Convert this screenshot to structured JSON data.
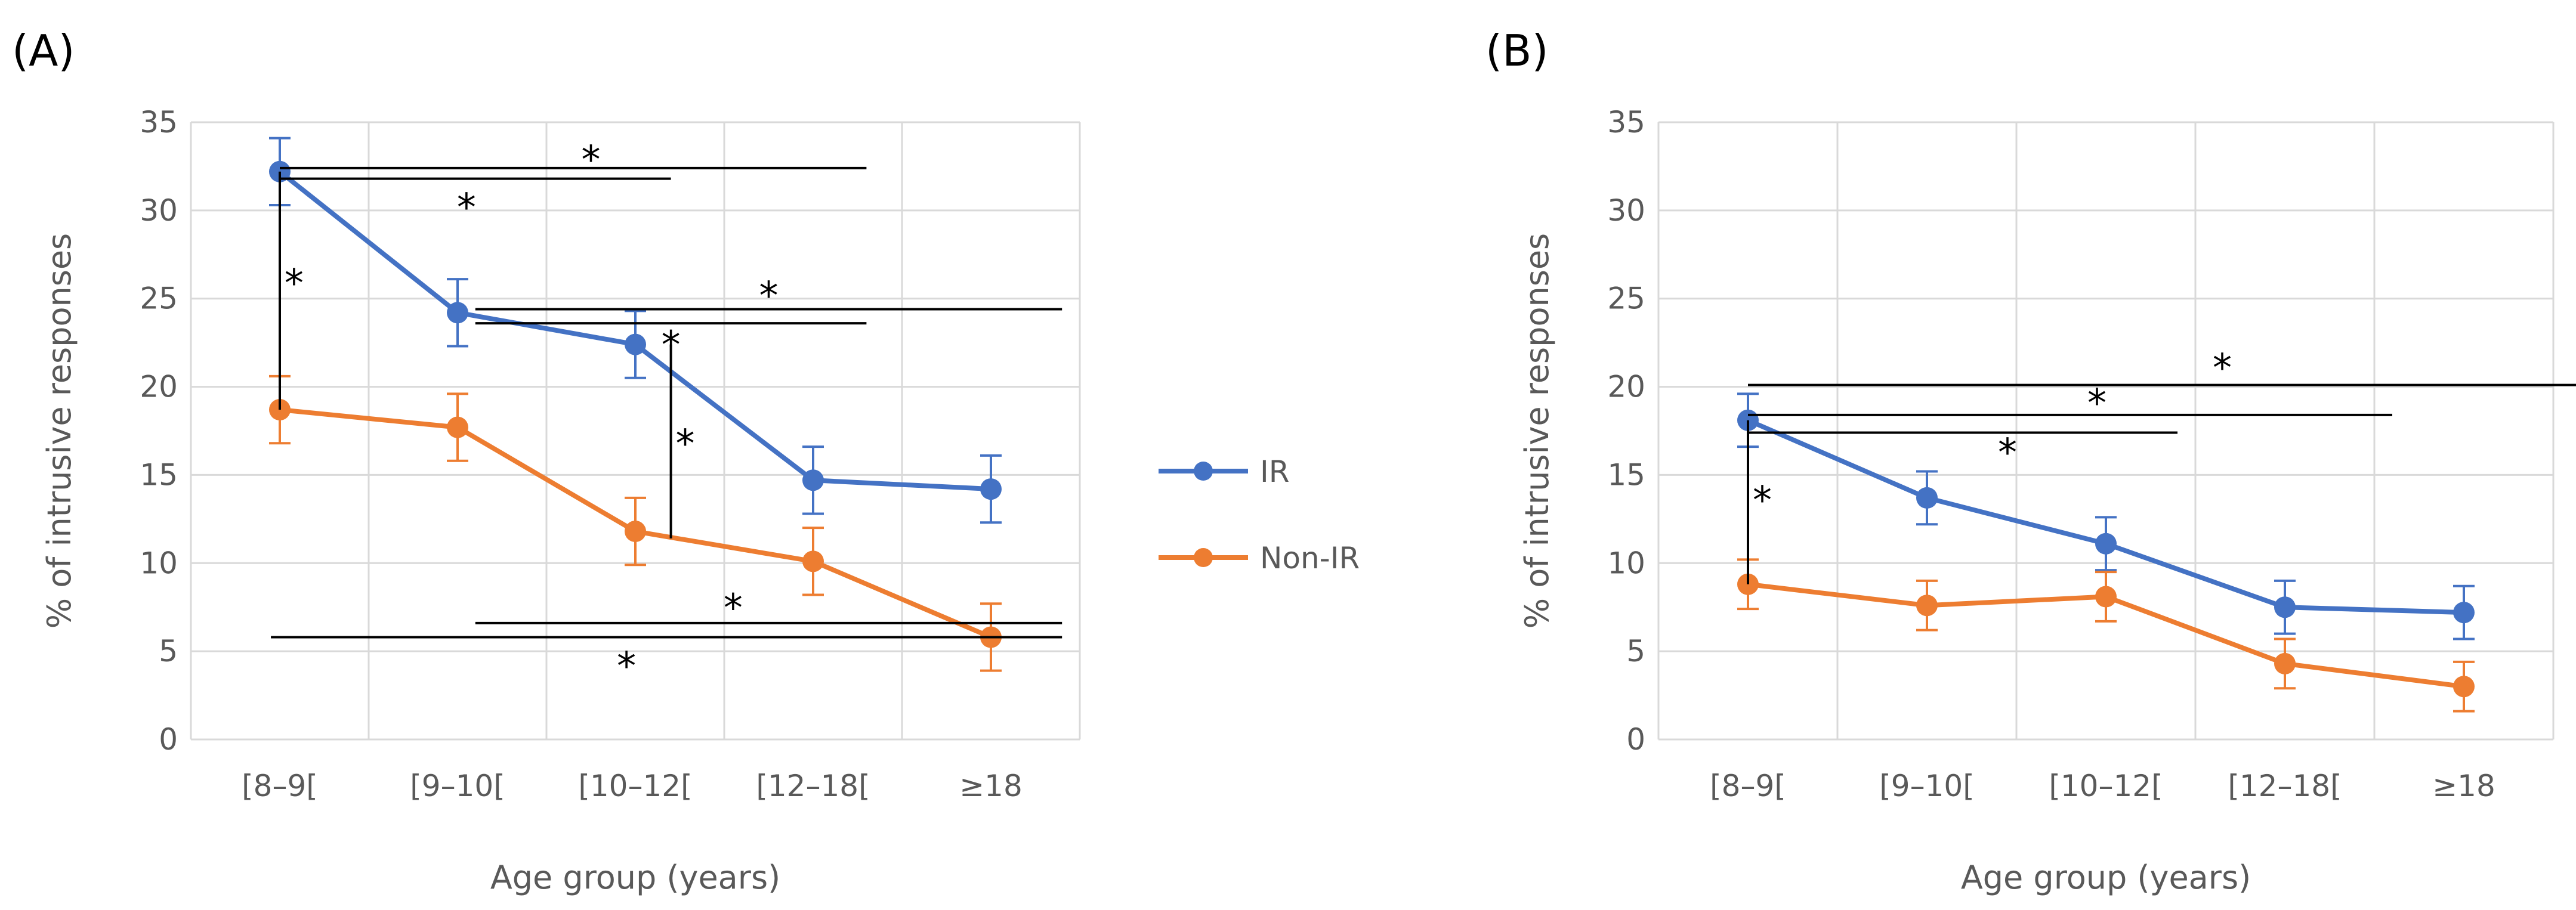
{
  "chart_data": [
    {
      "type": "line",
      "panel_label": "(A)",
      "categories": [
        "[8–9[",
        "[9–10[",
        "[10–12[",
        "[12–18[",
        "≥18"
      ],
      "xlabel": "Age group (years)",
      "ylabel": "% of intrusive responses",
      "ylim": [
        0,
        35
      ],
      "yticks": [
        0,
        5,
        10,
        15,
        20,
        25,
        30,
        35
      ],
      "grid": true,
      "series": [
        {
          "name": "IR",
          "color": "#4472C4",
          "values": [
            32.2,
            24.2,
            22.4,
            14.7,
            14.2
          ],
          "errors": [
            1.9,
            1.9,
            1.9,
            1.9,
            1.9
          ]
        },
        {
          "name": "Non-IR",
          "color": "#ED7D31",
          "values": [
            18.7,
            17.7,
            11.8,
            10.1,
            5.8
          ],
          "errors": [
            1.9,
            1.9,
            1.9,
            1.9,
            1.9
          ]
        }
      ],
      "significance_bars": [
        {
          "type": "h",
          "x1": 0,
          "x2": 3.3,
          "y": 32.4,
          "star": "*",
          "star_x": 1.75,
          "star_y": 33.0
        },
        {
          "type": "h",
          "x1": 0,
          "x2": 2.2,
          "y": 31.8,
          "star": "*",
          "star_x": 1.05,
          "star_y": 30.3
        },
        {
          "type": "h",
          "x1": 1.1,
          "x2": 4.4,
          "y": 24.4,
          "star": "*",
          "star_x": 2.75,
          "star_y": 25.3
        },
        {
          "type": "h",
          "x1": 1.1,
          "x2": 3.3,
          "y": 23.6,
          "star": "*",
          "star_x": 2.2,
          "star_y": 22.5
        },
        {
          "type": "h",
          "x1": 1.1,
          "x2": 4.4,
          "y": 6.6,
          "star": "*",
          "star_x": 2.55,
          "star_y": 7.6
        },
        {
          "type": "h",
          "x1": -0.05,
          "x2": 4.4,
          "y": 5.8,
          "star": "*",
          "star_x": 1.95,
          "star_y": 4.3
        },
        {
          "type": "v",
          "x": 0,
          "y1": 18.7,
          "y2": 32.2,
          "star": "*",
          "star_x": 0.08,
          "star_y": 26.0
        },
        {
          "type": "v",
          "x": 2.2,
          "y1": 11.4,
          "y2": 22.4,
          "star": "*",
          "star_x": 2.28,
          "star_y": 16.9
        }
      ]
    },
    {
      "type": "line",
      "panel_label": "(B)",
      "categories": [
        "[8–9[",
        "[9–10[",
        "[10–12[",
        "[12–18[",
        "≥18"
      ],
      "xlabel": "Age group (years)",
      "ylabel": "% of intrusive responses",
      "ylim": [
        0,
        35
      ],
      "yticks": [
        0,
        5,
        10,
        15,
        20,
        25,
        30,
        35
      ],
      "grid": true,
      "series": [
        {
          "name": "IR",
          "color": "#4472C4",
          "values": [
            18.1,
            13.7,
            11.1,
            7.5,
            7.2
          ],
          "errors": [
            1.5,
            1.5,
            1.5,
            1.5,
            1.5
          ]
        },
        {
          "name": "Non-IR",
          "color": "#ED7D31",
          "values": [
            8.8,
            7.6,
            8.1,
            4.3,
            3.0
          ],
          "errors": [
            1.4,
            1.4,
            1.4,
            1.4,
            1.4
          ]
        }
      ],
      "significance_bars": [
        {
          "type": "h",
          "x1": 0,
          "x2": 4.9,
          "y": 20.1,
          "star": "*",
          "star_x": 2.65,
          "star_y": 21.2
        },
        {
          "type": "h",
          "x1": 0,
          "x2": 3.6,
          "y": 18.4,
          "star": "*",
          "star_x": 1.95,
          "star_y": 19.2
        },
        {
          "type": "h",
          "x1": 0,
          "x2": 2.4,
          "y": 17.4,
          "star": "*",
          "star_x": 1.45,
          "star_y": 16.4
        },
        {
          "type": "v",
          "x": 0,
          "y1": 8.8,
          "y2": 18.1,
          "star": "*",
          "star_x": 0.08,
          "star_y": 13.7
        }
      ]
    }
  ],
  "legend": {
    "entries": [
      {
        "name": "IR",
        "color": "#4472C4"
      },
      {
        "name": "Non-IR",
        "color": "#ED7D31"
      }
    ]
  }
}
